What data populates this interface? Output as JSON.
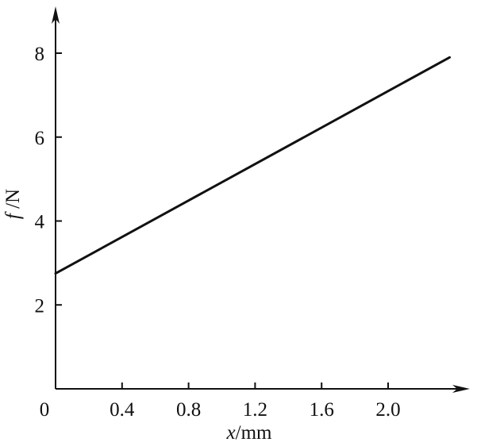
{
  "chart_data": {
    "type": "line",
    "title": "",
    "xlabel_italic": "x",
    "xlabel_unit": "/mm",
    "ylabel_italic": "f",
    "ylabel_unit": " /N",
    "origin_label": "0",
    "xticks": [
      0.4,
      0.8,
      1.2,
      1.6,
      2.0
    ],
    "xtick_labels": [
      "0.4",
      "0.8",
      "1.2",
      "1.6",
      "2.0"
    ],
    "yticks": [
      2,
      4,
      6,
      8
    ],
    "ytick_labels": [
      "2",
      "4",
      "6",
      "8"
    ],
    "xlim": [
      0,
      2.45
    ],
    "ylim": [
      0,
      9
    ],
    "grid": false,
    "series": [
      {
        "x": [
          0.0,
          2.37
        ],
        "y": [
          2.75,
          7.9
        ]
      }
    ],
    "colors": {
      "axis": "#111111",
      "line": "#111111"
    }
  }
}
